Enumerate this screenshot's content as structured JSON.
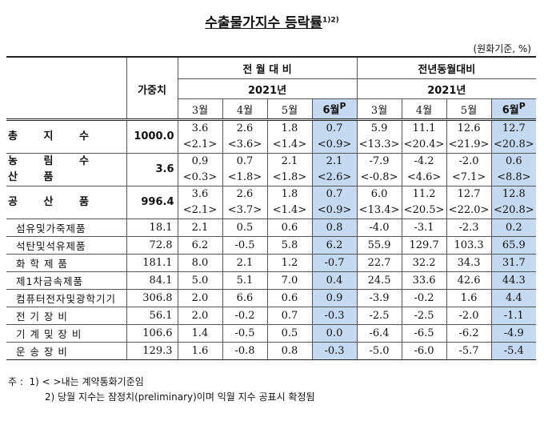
{
  "title": "수출물가지수 등락률",
  "title_sup": "1)2)",
  "unit": "(원화기준, %)",
  "header": {
    "weight": "가중치",
    "mom": "전 월 대 비",
    "yoy": "전년동월대비",
    "year_mom": "2021년",
    "year_yoy": "2021년",
    "months": [
      "3월",
      "4월",
      "5월"
    ],
    "june": "6월",
    "june_sup": "P"
  },
  "main_rows": [
    {
      "name": "총 지 수",
      "weight": "1000.0",
      "mom": [
        "3.6",
        "2.6",
        "1.8",
        "0.7"
      ],
      "mom_c": [
        "<2.1>",
        "<3.6>",
        "<1.4>",
        "<0.9>"
      ],
      "yoy": [
        "5.9",
        "11.1",
        "12.6",
        "12.7"
      ],
      "yoy_c": [
        "<13.3>",
        "<20.4>",
        "<21.9>",
        "<20.8>"
      ]
    },
    {
      "name": "농 림 수 산 품",
      "weight": "3.6",
      "mom": [
        "0.9",
        "0.7",
        "2.1",
        "2.1"
      ],
      "mom_c": [
        "<0.3>",
        "<1.8>",
        "<1.8>",
        "<2.6>"
      ],
      "yoy": [
        "-7.9",
        "-4.2",
        "-2.0",
        "0.6"
      ],
      "yoy_c": [
        "<-0.8>",
        "<4.6>",
        "<7.1>",
        "<8.8>"
      ]
    },
    {
      "name": "공 산 품",
      "weight": "996.4",
      "mom": [
        "3.6",
        "2.6",
        "1.8",
        "0.7"
      ],
      "mom_c": [
        "<2.1>",
        "<3.7>",
        "<1.4>",
        "<0.9>"
      ],
      "yoy": [
        "6.0",
        "11.2",
        "12.7",
        "12.8"
      ],
      "yoy_c": [
        "<13.4>",
        "<20.5>",
        "<22.0>",
        "<20.8>"
      ]
    }
  ],
  "sub_rows": [
    {
      "name": "섬유및가죽제품",
      "weight": "18.1",
      "mom": [
        "2.1",
        "0.5",
        "0.6",
        "0.8"
      ],
      "yoy": [
        "-4.0",
        "-3.1",
        "-2.3",
        "0.2"
      ]
    },
    {
      "name": "석탄및석유제품",
      "weight": "72.8",
      "mom": [
        "6.2",
        "-0.5",
        "5.8",
        "6.2"
      ],
      "yoy": [
        "55.9",
        "129.7",
        "103.3",
        "65.9"
      ]
    },
    {
      "name": "화 학 제 품",
      "weight": "181.1",
      "mom": [
        "8.0",
        "2.1",
        "1.2",
        "-0.7"
      ],
      "yoy": [
        "22.7",
        "32.2",
        "34.3",
        "31.7"
      ]
    },
    {
      "name": "제1차금속제품",
      "weight": "84.1",
      "mom": [
        "5.0",
        "5.1",
        "7.0",
        "0.4"
      ],
      "yoy": [
        "24.5",
        "33.6",
        "42.6",
        "44.3"
      ]
    },
    {
      "name": "컴퓨터전자및광학기기",
      "weight": "306.8",
      "mom": [
        "2.0",
        "6.6",
        "0.6",
        "0.9"
      ],
      "yoy": [
        "-3.9",
        "-0.2",
        "1.6",
        "4.4"
      ]
    },
    {
      "name": "전 기 장 비",
      "weight": "56.1",
      "mom": [
        "2.0",
        "-0.2",
        "0.7",
        "-0.3"
      ],
      "yoy": [
        "-2.5",
        "-2.5",
        "-2.0",
        "-1.1"
      ]
    },
    {
      "name": "기 계 및 장 비",
      "weight": "106.6",
      "mom": [
        "1.4",
        "-0.5",
        "0.5",
        "0.0"
      ],
      "yoy": [
        "-6.4",
        "-6.5",
        "-6.2",
        "-4.9"
      ]
    },
    {
      "name": "운 송 장 비",
      "weight": "129.3",
      "mom": [
        "1.6",
        "-0.8",
        "0.8",
        "-0.3"
      ],
      "yoy": [
        "-5.0",
        "-6.0",
        "-5.7",
        "-5.4"
      ]
    }
  ],
  "notes": {
    "label": "주 :",
    "n1": "1) < >내는 계약통화기준임",
    "n2": "2) 당월 지수는 잠정치(preliminary)이며 익월 지수 공표시 확정됨"
  },
  "colors": {
    "highlight": "#c5d9f1"
  }
}
